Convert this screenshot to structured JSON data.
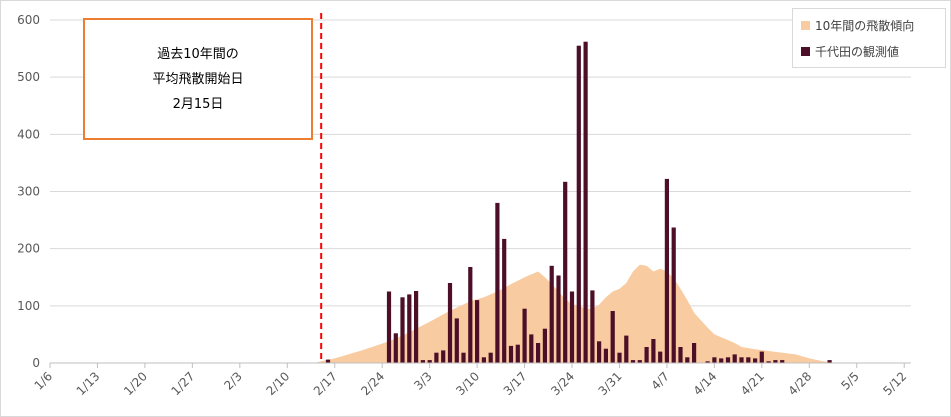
{
  "chart_data": {
    "type": "bar",
    "ylim": [
      0,
      600
    ],
    "yticks": [
      0,
      100,
      200,
      300,
      400,
      500,
      600
    ],
    "xdomain": [
      0,
      127
    ],
    "xticks": [
      {
        "day": 0,
        "label": "1/6"
      },
      {
        "day": 7,
        "label": "1/13"
      },
      {
        "day": 14,
        "label": "1/20"
      },
      {
        "day": 21,
        "label": "1/27"
      },
      {
        "day": 28,
        "label": "2/3"
      },
      {
        "day": 35,
        "label": "2/10"
      },
      {
        "day": 42,
        "label": "2/17"
      },
      {
        "day": 49,
        "label": "2/24"
      },
      {
        "day": 56,
        "label": "3/3"
      },
      {
        "day": 63,
        "label": "3/10"
      },
      {
        "day": 70,
        "label": "3/17"
      },
      {
        "day": 77,
        "label": "3/24"
      },
      {
        "day": 84,
        "label": "3/31"
      },
      {
        "day": 91,
        "label": "4/7"
      },
      {
        "day": 98,
        "label": "4/14"
      },
      {
        "day": 105,
        "label": "4/21"
      },
      {
        "day": 112,
        "label": "4/28"
      },
      {
        "day": 119,
        "label": "5/5"
      },
      {
        "day": 126,
        "label": "5/12"
      }
    ],
    "vline": {
      "day": 40,
      "color": "#ff0000"
    },
    "annotation": [
      "過去10年間の",
      "平均飛散開始日",
      "2月15日"
    ],
    "series": [
      {
        "name": "10年間の飛散傾向",
        "type": "area",
        "color": "#f8cba0",
        "points": [
          [
            39,
            0
          ],
          [
            40,
            3
          ],
          [
            42,
            8
          ],
          [
            44,
            15
          ],
          [
            46,
            22
          ],
          [
            48,
            30
          ],
          [
            50,
            38
          ],
          [
            52,
            48
          ],
          [
            54,
            60
          ],
          [
            56,
            72
          ],
          [
            58,
            85
          ],
          [
            60,
            97
          ],
          [
            62,
            108
          ],
          [
            64,
            115
          ],
          [
            66,
            125
          ],
          [
            68,
            138
          ],
          [
            70,
            150
          ],
          [
            71,
            155
          ],
          [
            72,
            160
          ],
          [
            73,
            150
          ],
          [
            74,
            138
          ],
          [
            75,
            125
          ],
          [
            76,
            112
          ],
          [
            77,
            103
          ],
          [
            78,
            100
          ],
          [
            79,
            95
          ],
          [
            80,
            95
          ],
          [
            81,
            102
          ],
          [
            82,
            115
          ],
          [
            83,
            125
          ],
          [
            84,
            130
          ],
          [
            85,
            140
          ],
          [
            86,
            160
          ],
          [
            87,
            172
          ],
          [
            88,
            170
          ],
          [
            89,
            160
          ],
          [
            90,
            165
          ],
          [
            91,
            160
          ],
          [
            92,
            148
          ],
          [
            93,
            130
          ],
          [
            94,
            110
          ],
          [
            95,
            88
          ],
          [
            96,
            75
          ],
          [
            97,
            62
          ],
          [
            98,
            50
          ],
          [
            100,
            40
          ],
          [
            101,
            35
          ],
          [
            102,
            28
          ],
          [
            104,
            24
          ],
          [
            106,
            21
          ],
          [
            108,
            18
          ],
          [
            110,
            15
          ],
          [
            112,
            8
          ],
          [
            114,
            3
          ],
          [
            116,
            0
          ]
        ]
      },
      {
        "name": "千代田の観測値",
        "type": "bar",
        "color": "#4d0f28",
        "points": [
          [
            41,
            6
          ],
          [
            50,
            125
          ],
          [
            51,
            52
          ],
          [
            52,
            115
          ],
          [
            53,
            120
          ],
          [
            54,
            126
          ],
          [
            55,
            5
          ],
          [
            56,
            5
          ],
          [
            57,
            18
          ],
          [
            58,
            22
          ],
          [
            59,
            140
          ],
          [
            60,
            78
          ],
          [
            61,
            18
          ],
          [
            62,
            168
          ],
          [
            63,
            110
          ],
          [
            64,
            10
          ],
          [
            65,
            18
          ],
          [
            66,
            280
          ],
          [
            67,
            217
          ],
          [
            68,
            30
          ],
          [
            69,
            32
          ],
          [
            70,
            95
          ],
          [
            71,
            50
          ],
          [
            72,
            35
          ],
          [
            73,
            60
          ],
          [
            74,
            170
          ],
          [
            75,
            153
          ],
          [
            76,
            317
          ],
          [
            77,
            125
          ],
          [
            78,
            555
          ],
          [
            79,
            562
          ],
          [
            80,
            127
          ],
          [
            81,
            38
          ],
          [
            82,
            25
          ],
          [
            83,
            91
          ],
          [
            84,
            18
          ],
          [
            85,
            48
          ],
          [
            86,
            5
          ],
          [
            87,
            5
          ],
          [
            88,
            28
          ],
          [
            89,
            42
          ],
          [
            90,
            20
          ],
          [
            91,
            322
          ],
          [
            92,
            237
          ],
          [
            93,
            28
          ],
          [
            94,
            10
          ],
          [
            95,
            35
          ],
          [
            97,
            3
          ],
          [
            98,
            10
          ],
          [
            99,
            8
          ],
          [
            100,
            10
          ],
          [
            101,
            15
          ],
          [
            102,
            10
          ],
          [
            103,
            10
          ],
          [
            104,
            8
          ],
          [
            105,
            20
          ],
          [
            106,
            3
          ],
          [
            107,
            5
          ],
          [
            108,
            5
          ],
          [
            115,
            5
          ]
        ]
      }
    ]
  }
}
